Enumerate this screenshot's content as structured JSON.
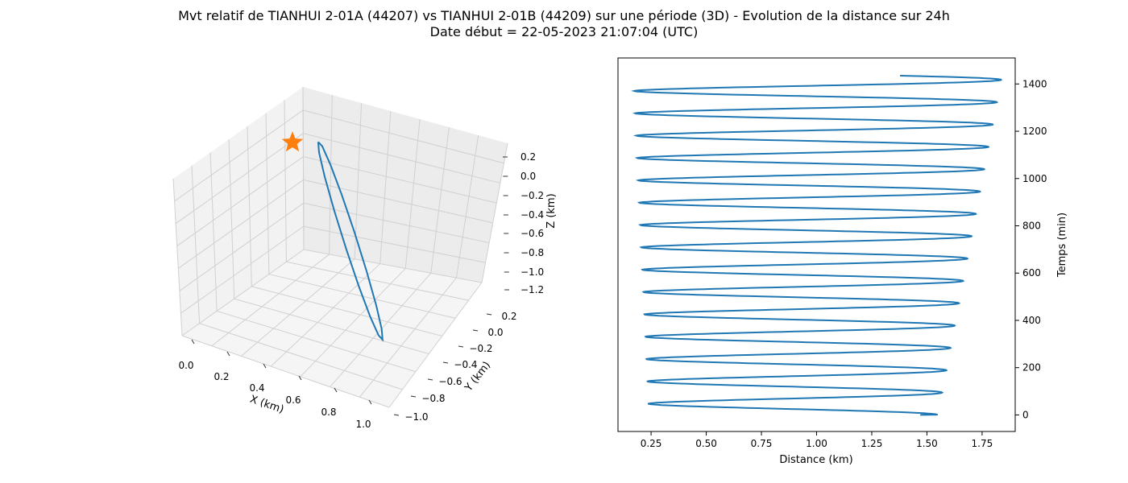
{
  "figure": {
    "title_line1": "Mvt relatif de TIANHUI 2-01A (44207) vs TIANHUI 2-01B (44209) sur une période (3D) - Evolution de la distance sur 24h",
    "title_line2": "Date début = 22-05-2023 21:07:04 (UTC)"
  },
  "chart_data": [
    {
      "type": "line3d",
      "xlabel": "X (km)",
      "ylabel": "Y (km)",
      "zlabel": "Z (km)",
      "x_ticks": [
        "0.0",
        "0.2",
        "0.4",
        "0.6",
        "0.8",
        "1.0"
      ],
      "y_ticks": [
        "0.2",
        "0.0",
        "−0.2",
        "−0.4",
        "−0.6",
        "−0.8",
        "−1.0"
      ],
      "z_ticks": [
        "0.2",
        "0.0",
        "−0.2",
        "−0.4",
        "−0.6",
        "−0.8",
        "−1.0",
        "−1.2"
      ],
      "xlim": [
        -0.05,
        1.05
      ],
      "ylim": [
        -1.05,
        0.25
      ],
      "zlim": [
        -1.25,
        0.3
      ],
      "grid": true,
      "series_color": "#1f77b4",
      "marker": {
        "shape": "star",
        "color": "#ff7f0e",
        "x": 0.0,
        "y": 0.0,
        "z": 0.0
      }
    },
    {
      "type": "line",
      "xlabel": "Distance (km)",
      "ylabel": "Temps (min)",
      "x_ticks": [
        "0.25",
        "0.50",
        "0.75",
        "1.00",
        "1.25",
        "1.50",
        "1.75"
      ],
      "y_ticks": [
        "0",
        "200",
        "400",
        "600",
        "800",
        "1000",
        "1200",
        "1400"
      ],
      "xlim": [
        0.1,
        1.9
      ],
      "ylim": [
        -70,
        1510
      ],
      "series_color": "#1f77b4",
      "t_start": 0,
      "t_end": 1435,
      "period_min": 94.5,
      "min_start": 0.24,
      "min_end": 0.17,
      "max_start": 1.55,
      "max_end": 1.84
    }
  ]
}
